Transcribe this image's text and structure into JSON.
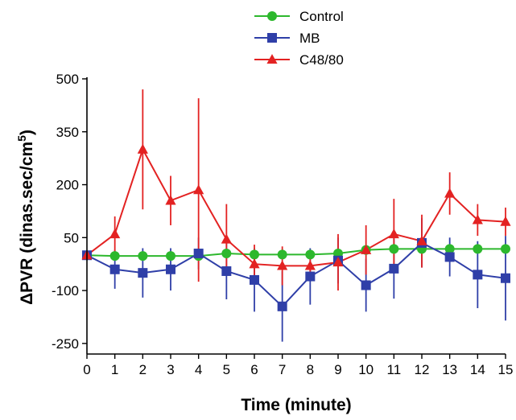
{
  "chart_data": {
    "type": "line",
    "title": "",
    "xlabel": "Time (minute)",
    "ylabel": "ΔPVR (dinas.sec/cm",
    "ylabel_superscript": "5",
    "ylabel_close": ")",
    "x": [
      0,
      1,
      2,
      3,
      4,
      5,
      6,
      7,
      8,
      9,
      10,
      11,
      12,
      13,
      14,
      15
    ],
    "xlim": [
      0,
      15
    ],
    "ylim": [
      -280,
      500
    ],
    "x_ticks": [
      "0",
      "1",
      "2",
      "3",
      "4",
      "5",
      "6",
      "7",
      "8",
      "9",
      "10",
      "11",
      "12",
      "13",
      "14",
      "15"
    ],
    "y_ticks": [
      {
        "value": 500,
        "label": "500"
      },
      {
        "value": 350,
        "label": "350"
      },
      {
        "value": 200,
        "label": "200"
      },
      {
        "value": 50,
        "label": "50"
      },
      {
        "value": -100,
        "label": "-100"
      },
      {
        "value": -250,
        "label": "-250"
      }
    ],
    "grid": false,
    "legend_position": "top-center",
    "series": [
      {
        "name": "Control",
        "color": "#2db82d",
        "marker": "circle",
        "values": [
          0,
          -2,
          -2,
          -2,
          -2,
          5,
          2,
          2,
          2,
          5,
          15,
          18,
          18,
          18,
          18,
          18
        ],
        "errors": [
          0,
          0,
          0,
          0,
          0,
          0,
          0,
          0,
          0,
          0,
          0,
          0,
          0,
          0,
          0,
          0
        ]
      },
      {
        "name": "MB",
        "color": "#2f3fa8",
        "marker": "square",
        "values": [
          0,
          -40,
          -50,
          -40,
          5,
          -45,
          -70,
          -145,
          -60,
          -15,
          -85,
          -38,
          35,
          -5,
          -55,
          -65
        ],
        "errors": [
          0,
          55,
          70,
          60,
          45,
          80,
          90,
          100,
          80,
          65,
          75,
          85,
          70,
          55,
          95,
          120
        ]
      },
      {
        "name": "C48/80",
        "color": "#e32222",
        "marker": "triangle",
        "values": [
          0,
          60,
          300,
          155,
          185,
          45,
          -25,
          -30,
          -30,
          -20,
          15,
          60,
          40,
          175,
          100,
          95
        ],
        "errors": [
          0,
          50,
          170,
          70,
          260,
          100,
          55,
          55,
          40,
          80,
          70,
          100,
          75,
          60,
          45,
          40
        ]
      }
    ]
  }
}
